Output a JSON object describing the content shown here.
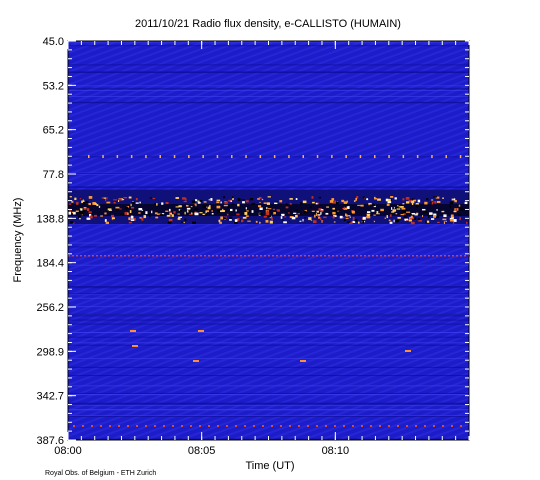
{
  "chart_data": {
    "type": "spectrogram",
    "title": "2011/10/21  Radio flux density, e-CALLISTO (HUMAIN)",
    "xlabel": "Time (UT)",
    "ylabel": "Frequency (MHz)",
    "credit": "Royal Obs. of Belgium - ETH Zurich",
    "xlim": [
      0,
      15
    ],
    "xticks": [
      {
        "value": 0,
        "label": "08:00"
      },
      {
        "value": 5,
        "label": "08:05"
      },
      {
        "value": 10,
        "label": "08:10"
      }
    ],
    "yticks": [
      {
        "value": 45,
        "label": "45.0"
      },
      {
        "value": 53.2,
        "label": "53.2"
      },
      {
        "value": 65.2,
        "label": "65.2"
      },
      {
        "value": 77.8,
        "label": "77.8"
      },
      {
        "value": 138.8,
        "label": "138.8"
      },
      {
        "value": 184.4,
        "label": "184.4"
      },
      {
        "value": 256.2,
        "label": "256.2"
      },
      {
        "value": 298.9,
        "label": "298.9"
      },
      {
        "value": 342.7,
        "label": "342.7"
      },
      {
        "value": 387.6,
        "label": "387.6"
      }
    ]
  }
}
